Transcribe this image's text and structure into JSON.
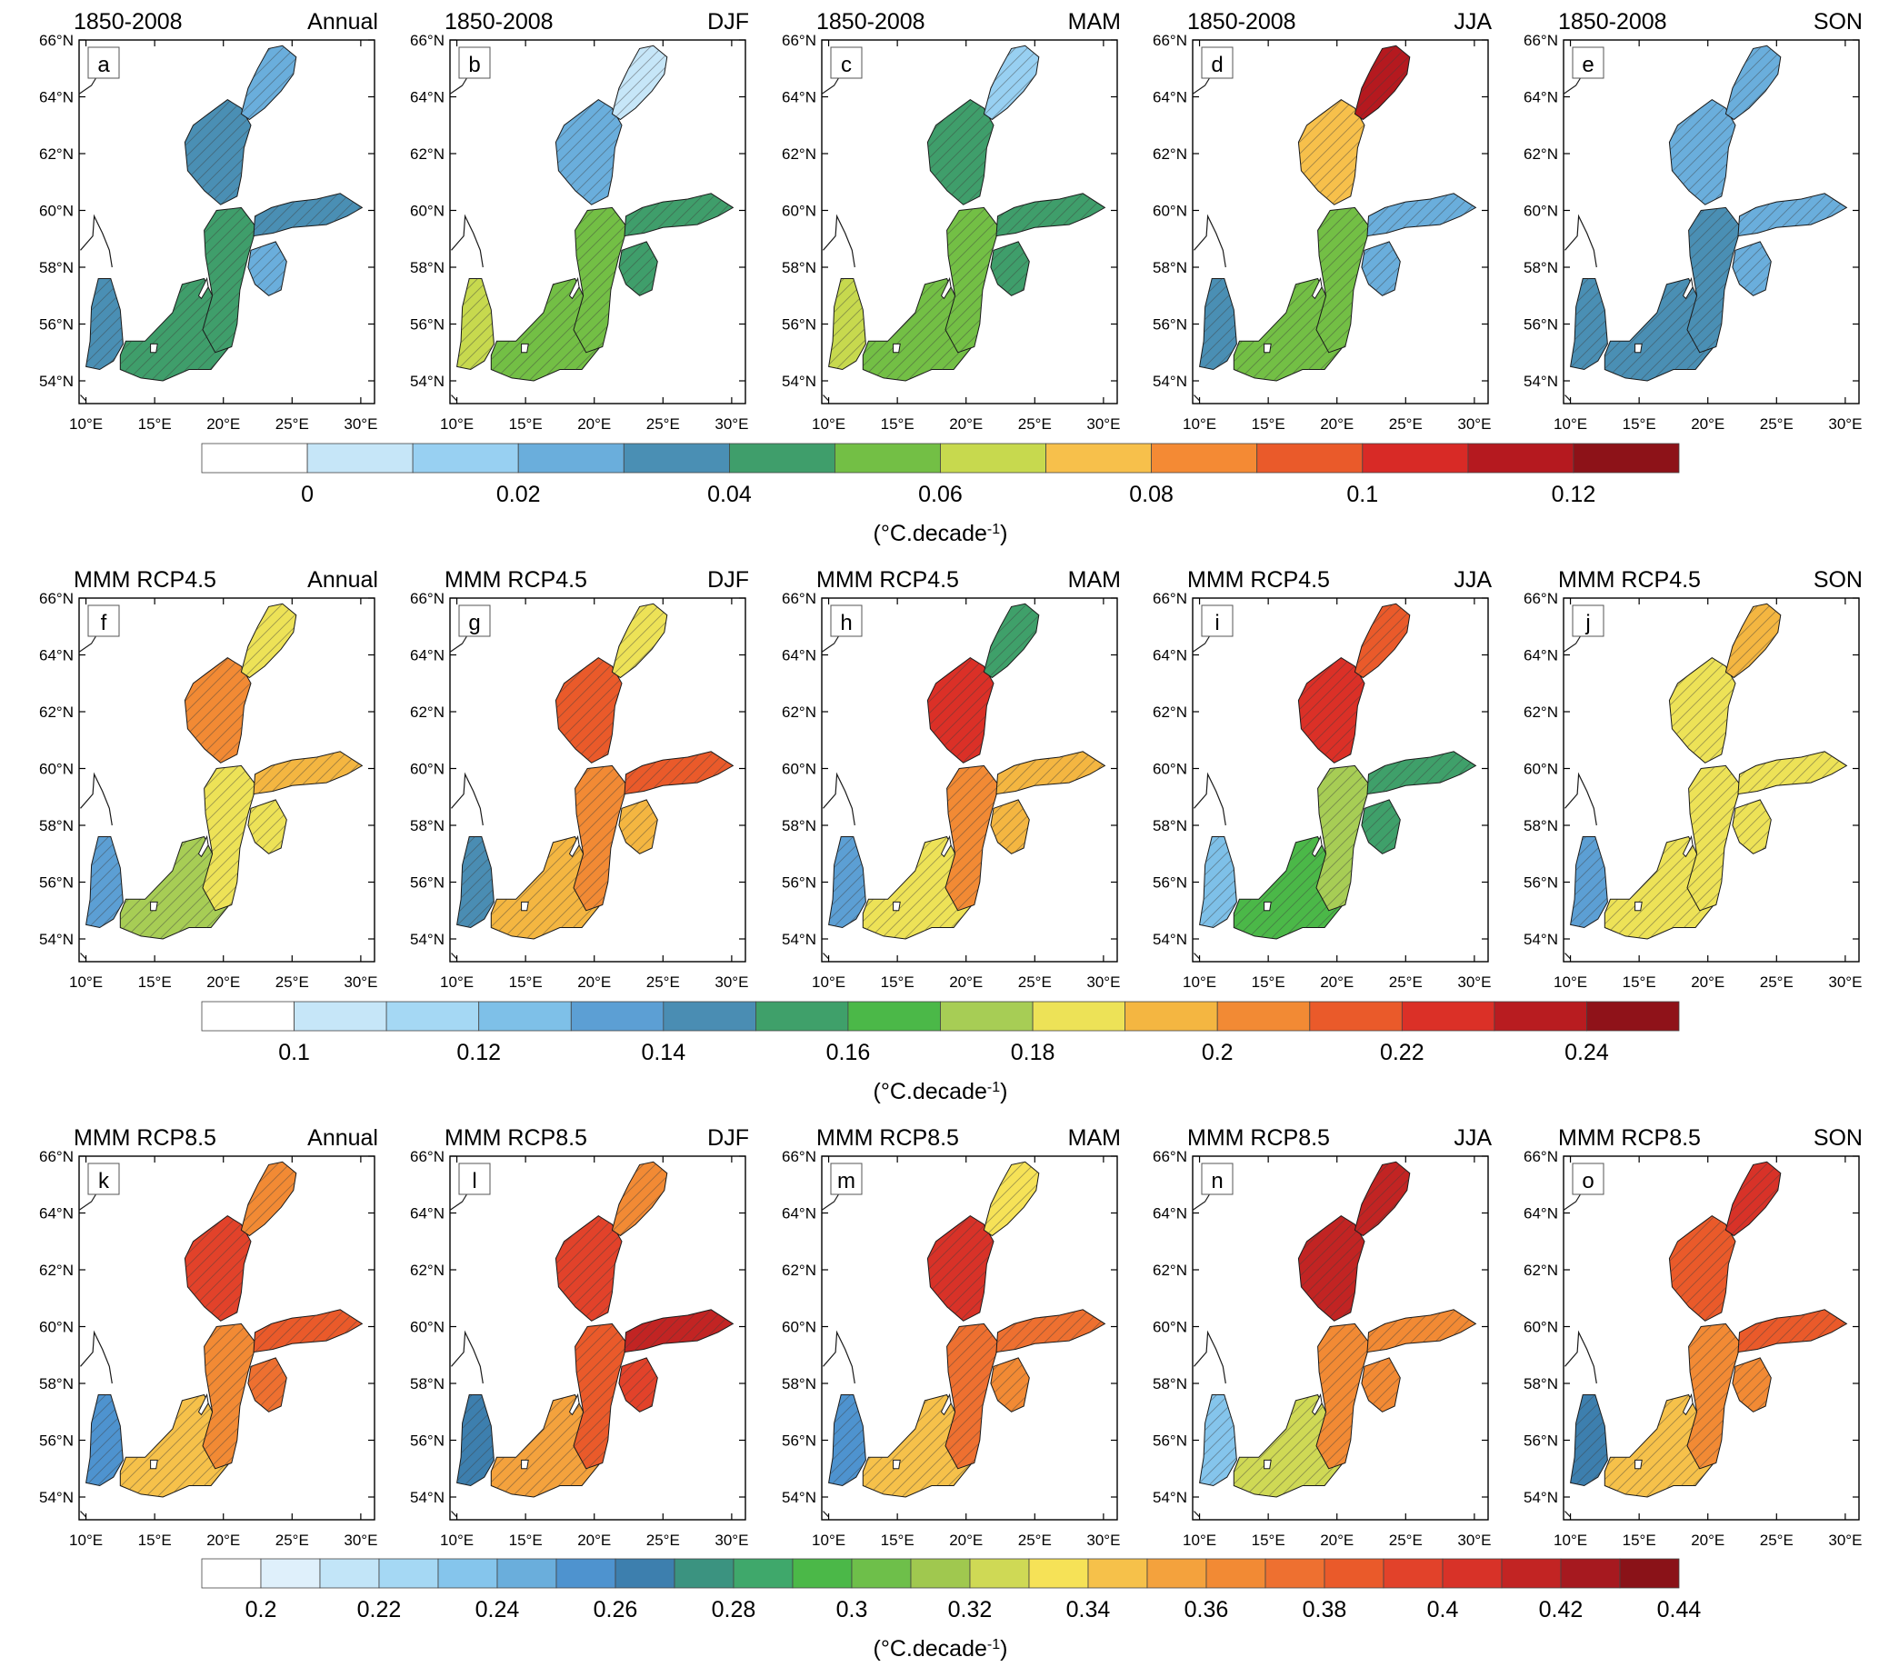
{
  "rows": [
    {
      "title_left": "1850-2008",
      "cbar_labels": [
        "0",
        "0.02",
        "0.04",
        "0.06",
        "0.08",
        "0.1",
        "0.12"
      ],
      "unit_text": "(°C.decade",
      "unit_sup": "-1",
      "unit_close": ")",
      "colors": [
        "#ffffff",
        "#c6e6f8",
        "#98d0f2",
        "#6aaedc",
        "#4a8fb4",
        "#3f9e6b",
        "#73bf45",
        "#c7d94e",
        "#f7c04b",
        "#f48a34",
        "#ea5a2a",
        "#d82a26",
        "#b5191f",
        "#8d1218"
      ],
      "panels": [
        {
          "letter": "a",
          "season": "Annual",
          "fill": {
            "bothnian_bay": 3,
            "bothnian_sea": 4,
            "gulf_finland": 4,
            "gulf_riga": 3,
            "gotland": 5,
            "southern": 5,
            "danish": 4
          }
        },
        {
          "letter": "b",
          "season": "DJF",
          "fill": {
            "bothnian_bay": 1,
            "bothnian_sea": 3,
            "gulf_finland": 5,
            "gulf_riga": 5,
            "gotland": 6,
            "southern": 6,
            "danish": 7
          }
        },
        {
          "letter": "c",
          "season": "MAM",
          "fill": {
            "bothnian_bay": 2,
            "bothnian_sea": 5,
            "gulf_finland": 5,
            "gulf_riga": 5,
            "gotland": 6,
            "southern": 6,
            "danish": 7
          }
        },
        {
          "letter": "d",
          "season": "JJA",
          "fill": {
            "bothnian_bay": 12,
            "bothnian_sea": 8,
            "gulf_finland": 3,
            "gulf_riga": 3,
            "gotland": 6,
            "southern": 6,
            "danish": 4
          }
        },
        {
          "letter": "e",
          "season": "SON",
          "fill": {
            "bothnian_bay": 3,
            "bothnian_sea": 3,
            "gulf_finland": 3,
            "gulf_riga": 3,
            "gotland": 4,
            "southern": 4,
            "danish": 4
          }
        }
      ]
    },
    {
      "title_left": "MMM RCP4.5",
      "cbar_labels": [
        "0.1",
        "0.12",
        "0.14",
        "0.16",
        "0.18",
        "0.2",
        "0.22",
        "0.24"
      ],
      "unit_text": "(°C.decade",
      "unit_sup": "-1",
      "unit_close": ")",
      "colors": [
        "#ffffff",
        "#c6e6f8",
        "#a5d8f4",
        "#7ec0e8",
        "#5c9fd4",
        "#4a8db3",
        "#3fa06a",
        "#4bb848",
        "#a7cd55",
        "#ede257",
        "#f4b641",
        "#f28a34",
        "#ea5a2a",
        "#db3027",
        "#b81c20",
        "#8f1219"
      ],
      "panels": [
        {
          "letter": "f",
          "season": "Annual",
          "fill": {
            "bothnian_bay": 9,
            "bothnian_sea": 11,
            "gulf_finland": 10,
            "gulf_riga": 9,
            "gotland": 9,
            "southern": 8,
            "danish": 4
          }
        },
        {
          "letter": "g",
          "season": "DJF",
          "fill": {
            "bothnian_bay": 9,
            "bothnian_sea": 12,
            "gulf_finland": 12,
            "gulf_riga": 10,
            "gotland": 11,
            "southern": 10,
            "danish": 5
          }
        },
        {
          "letter": "h",
          "season": "MAM",
          "fill": {
            "bothnian_bay": 6,
            "bothnian_sea": 13,
            "gulf_finland": 10,
            "gulf_riga": 10,
            "gotland": 11,
            "southern": 9,
            "danish": 4
          }
        },
        {
          "letter": "i",
          "season": "JJA",
          "fill": {
            "bothnian_bay": 12,
            "bothnian_sea": 13,
            "gulf_finland": 6,
            "gulf_riga": 6,
            "gotland": 8,
            "southern": 7,
            "danish": 3
          }
        },
        {
          "letter": "j",
          "season": "SON",
          "fill": {
            "bothnian_bay": 10,
            "bothnian_sea": 9,
            "gulf_finland": 9,
            "gulf_riga": 9,
            "gotland": 9,
            "southern": 9,
            "danish": 4
          }
        }
      ]
    },
    {
      "title_left": "MMM RCP8.5",
      "cbar_labels": [
        "0.2",
        "0.22",
        "0.24",
        "0.26",
        "0.28",
        "0.3",
        "0.32",
        "0.34",
        "0.36",
        "0.38",
        "0.4",
        "0.42",
        "0.44"
      ],
      "unit_text": "(°C.decade",
      "unit_sup": "-1",
      "unit_close": ")",
      "colors": [
        "#ffffff",
        "#dff0fb",
        "#c2e5f8",
        "#a5d8f4",
        "#85c5ec",
        "#6aaedc",
        "#4e93cf",
        "#3d7fae",
        "#3b9380",
        "#3fa86b",
        "#4bb848",
        "#6ebf4a",
        "#a0c84f",
        "#cfd955",
        "#f6e257",
        "#f6c14a",
        "#f4a23d",
        "#f28a34",
        "#ee7030",
        "#ea5a2a",
        "#e2422a",
        "#d83228",
        "#c22423",
        "#a6191f",
        "#8a1218"
      ],
      "panels": [
        {
          "letter": "k",
          "season": "Annual",
          "fill": {
            "bothnian_bay": 17,
            "bothnian_sea": 20,
            "gulf_finland": 19,
            "gulf_riga": 18,
            "gotland": 17,
            "southern": 15,
            "danish": 6
          }
        },
        {
          "letter": "l",
          "season": "DJF",
          "fill": {
            "bothnian_bay": 17,
            "bothnian_sea": 20,
            "gulf_finland": 22,
            "gulf_riga": 20,
            "gotland": 19,
            "southern": 16,
            "danish": 7
          }
        },
        {
          "letter": "m",
          "season": "MAM",
          "fill": {
            "bothnian_bay": 14,
            "bothnian_sea": 21,
            "gulf_finland": 18,
            "gulf_riga": 17,
            "gotland": 18,
            "southern": 15,
            "danish": 6
          }
        },
        {
          "letter": "n",
          "season": "JJA",
          "fill": {
            "bothnian_bay": 22,
            "bothnian_sea": 22,
            "gulf_finland": 17,
            "gulf_riga": 17,
            "gotland": 17,
            "southern": 13,
            "danish": 4
          }
        },
        {
          "letter": "o",
          "season": "SON",
          "fill": {
            "bothnian_bay": 21,
            "bothnian_sea": 19,
            "gulf_finland": 19,
            "gulf_riga": 17,
            "gotland": 17,
            "southern": 15,
            "danish": 7
          }
        }
      ]
    }
  ],
  "lat_ticks": [
    "66°N",
    "64°N",
    "62°N",
    "60°N",
    "58°N",
    "56°N",
    "54°N"
  ],
  "lon_ticks": [
    "10°E",
    "15°E",
    "20°E",
    "25°E",
    "30°E"
  ]
}
